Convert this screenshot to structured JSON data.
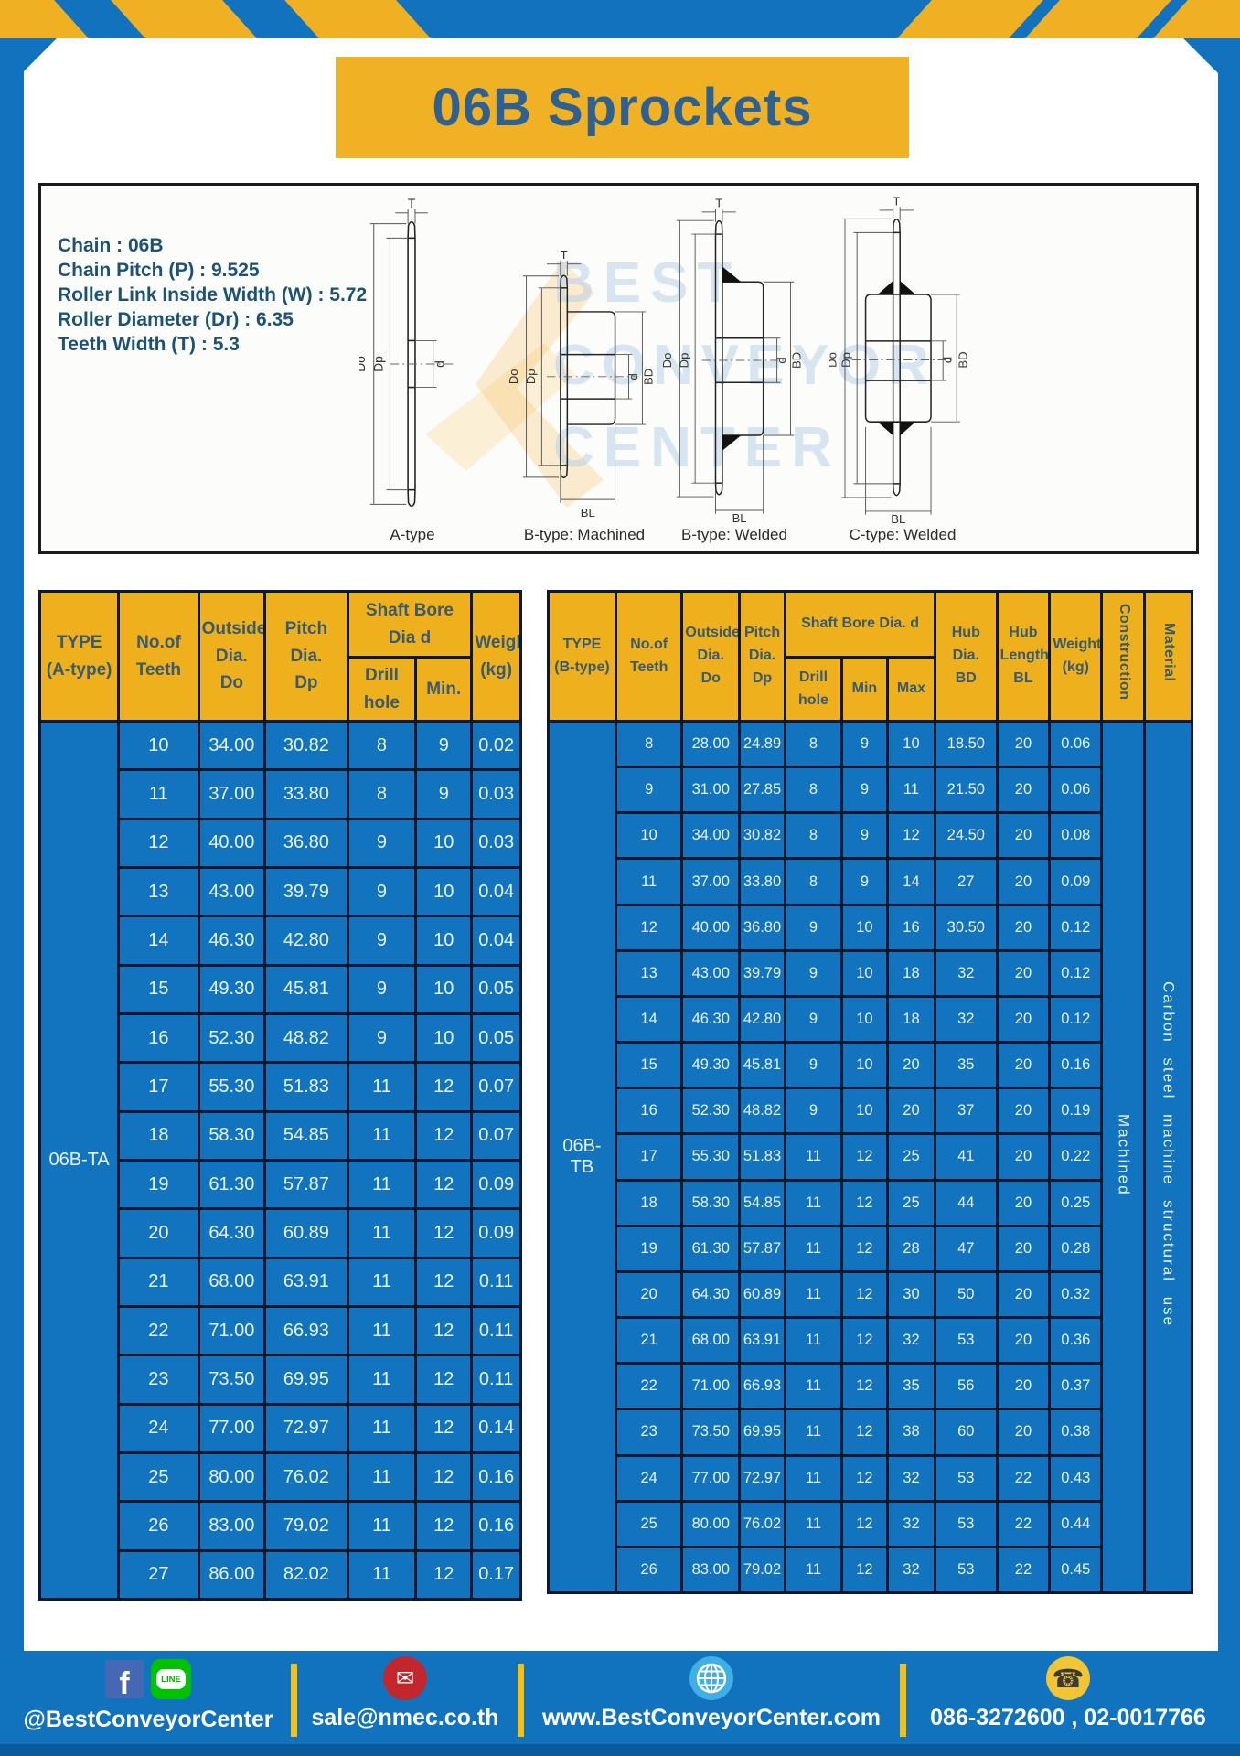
{
  "page": {
    "title": "06B Sprockets"
  },
  "specs": {
    "lines": [
      "Chain  : 06B",
      "Chain Pitch (P)  :  9.525",
      "Roller Link Inside Width (W)  :  5.72",
      "Roller Diameter (Dr)  : 6.35",
      "Teeth Width (T)  :  5.3"
    ]
  },
  "diagram_panel": {
    "watermark_lines": [
      "BEST",
      "CONVEYOR",
      "CENTER"
    ],
    "figures": [
      {
        "label": "A-type"
      },
      {
        "label": "B-type: Machined"
      },
      {
        "label": "B-type: Welded"
      },
      {
        "label": "C-type: Welded"
      }
    ],
    "dims": {
      "t": "T",
      "do": "Do",
      "dp": "Dp",
      "d": "d",
      "bd": "BD",
      "bl": "BL"
    }
  },
  "tables": {
    "left": {
      "header": {
        "type": "TYPE\n(A-type)",
        "teeth": "No.of\nTeeth",
        "outside": "Outside\nDia.\nDo",
        "pitch": "Pitch Dia.\nDp",
        "shaft_bore": "Shaft Bore Dia d",
        "drill": "Drill hole",
        "min": "Min.",
        "weight": "Weight\n(kg)"
      },
      "type_label": "06B-TA",
      "rows": [
        [
          "10",
          "34.00",
          "30.82",
          "8",
          "9",
          "0.02"
        ],
        [
          "11",
          "37.00",
          "33.80",
          "8",
          "9",
          "0.03"
        ],
        [
          "12",
          "40.00",
          "36.80",
          "9",
          "10",
          "0.03"
        ],
        [
          "13",
          "43.00",
          "39.79",
          "9",
          "10",
          "0.04"
        ],
        [
          "14",
          "46.30",
          "42.80",
          "9",
          "10",
          "0.04"
        ],
        [
          "15",
          "49.30",
          "45.81",
          "9",
          "10",
          "0.05"
        ],
        [
          "16",
          "52.30",
          "48.82",
          "9",
          "10",
          "0.05"
        ],
        [
          "17",
          "55.30",
          "51.83",
          "11",
          "12",
          "0.07"
        ],
        [
          "18",
          "58.30",
          "54.85",
          "11",
          "12",
          "0.07"
        ],
        [
          "19",
          "61.30",
          "57.87",
          "11",
          "12",
          "0.09"
        ],
        [
          "20",
          "64.30",
          "60.89",
          "11",
          "12",
          "0.09"
        ],
        [
          "21",
          "68.00",
          "63.91",
          "11",
          "12",
          "0.11"
        ],
        [
          "22",
          "71.00",
          "66.93",
          "11",
          "12",
          "0.11"
        ],
        [
          "23",
          "73.50",
          "69.95",
          "11",
          "12",
          "0.11"
        ],
        [
          "24",
          "77.00",
          "72.97",
          "11",
          "12",
          "0.14"
        ],
        [
          "25",
          "80.00",
          "76.02",
          "11",
          "12",
          "0.16"
        ],
        [
          "26",
          "83.00",
          "79.02",
          "11",
          "12",
          "0.16"
        ],
        [
          "27",
          "86.00",
          "82.02",
          "11",
          "12",
          "0.17"
        ]
      ]
    },
    "right": {
      "header": {
        "type": "TYPE\n(B-type)",
        "teeth": "No.of\nTeeth",
        "outside": "Outside\nDia.\nDo",
        "pitch": "Pitch\nDia.\nDp",
        "shaft_bore": "Shaft Bore Dia.  d",
        "drill": "Drill hole",
        "min": "Min",
        "max": "Max",
        "hub_dia": "Hub\nDia.\nBD",
        "hub_length": "Hub\nLength\nBL",
        "weight": "Weight\n(kg)",
        "construction": "Construction",
        "material": "Material"
      },
      "type_label": "06B-TB",
      "construction_value": "Machined",
      "material_value": "Carbon steel machine structural use",
      "rows": [
        [
          "8",
          "28.00",
          "24.89",
          "8",
          "9",
          "10",
          "18.50",
          "20",
          "0.06"
        ],
        [
          "9",
          "31.00",
          "27.85",
          "8",
          "9",
          "11",
          "21.50",
          "20",
          "0.06"
        ],
        [
          "10",
          "34.00",
          "30.82",
          "8",
          "9",
          "12",
          "24.50",
          "20",
          "0.08"
        ],
        [
          "11",
          "37.00",
          "33.80",
          "8",
          "9",
          "14",
          "27",
          "20",
          "0.09"
        ],
        [
          "12",
          "40.00",
          "36.80",
          "9",
          "10",
          "16",
          "30.50",
          "20",
          "0.12"
        ],
        [
          "13",
          "43.00",
          "39.79",
          "9",
          "10",
          "18",
          "32",
          "20",
          "0.12"
        ],
        [
          "14",
          "46.30",
          "42.80",
          "9",
          "10",
          "18",
          "32",
          "20",
          "0.12"
        ],
        [
          "15",
          "49.30",
          "45.81",
          "9",
          "10",
          "20",
          "35",
          "20",
          "0.16"
        ],
        [
          "16",
          "52.30",
          "48.82",
          "9",
          "10",
          "20",
          "37",
          "20",
          "0.19"
        ],
        [
          "17",
          "55.30",
          "51.83",
          "11",
          "12",
          "25",
          "41",
          "20",
          "0.22"
        ],
        [
          "18",
          "58.30",
          "54.85",
          "11",
          "12",
          "25",
          "44",
          "20",
          "0.25"
        ],
        [
          "19",
          "61.30",
          "57.87",
          "11",
          "12",
          "28",
          "47",
          "20",
          "0.28"
        ],
        [
          "20",
          "64.30",
          "60.89",
          "11",
          "12",
          "30",
          "50",
          "20",
          "0.32"
        ],
        [
          "21",
          "68.00",
          "63.91",
          "11",
          "12",
          "32",
          "53",
          "20",
          "0.36"
        ],
        [
          "22",
          "71.00",
          "66.93",
          "11",
          "12",
          "35",
          "56",
          "20",
          "0.37"
        ],
        [
          "23",
          "73.50",
          "69.95",
          "11",
          "12",
          "38",
          "60",
          "20",
          "0.38"
        ],
        [
          "24",
          "77.00",
          "72.97",
          "11",
          "12",
          "32",
          "53",
          "22",
          "0.43"
        ],
        [
          "25",
          "80.00",
          "76.02",
          "11",
          "12",
          "32",
          "53",
          "22",
          "0.44"
        ],
        [
          "26",
          "83.00",
          "79.02",
          "11",
          "12",
          "32",
          "53",
          "22",
          "0.45"
        ]
      ]
    }
  },
  "footer": {
    "social": "@BestConveyorCenter",
    "email": "sale@nmec.co.th",
    "website": "www.BestConveyorCenter.com",
    "phone": "086-3272600 , 02-0017766",
    "line_icon_text": "LINE",
    "facebook_icon_text": "f"
  },
  "colors": {
    "frame_blue": "#1272bd",
    "stripe_yellow": "#f0b024",
    "header_yellow": "#eeb01c",
    "table_blue": "#1273bf",
    "grid_navy": "#0b1830",
    "title_text": "#2e6091",
    "spec_text": "#1c5276",
    "header_text": "#3a5a6e",
    "footer_blue": "#1173be",
    "footer_dark_strip": "#0b5a9a"
  }
}
